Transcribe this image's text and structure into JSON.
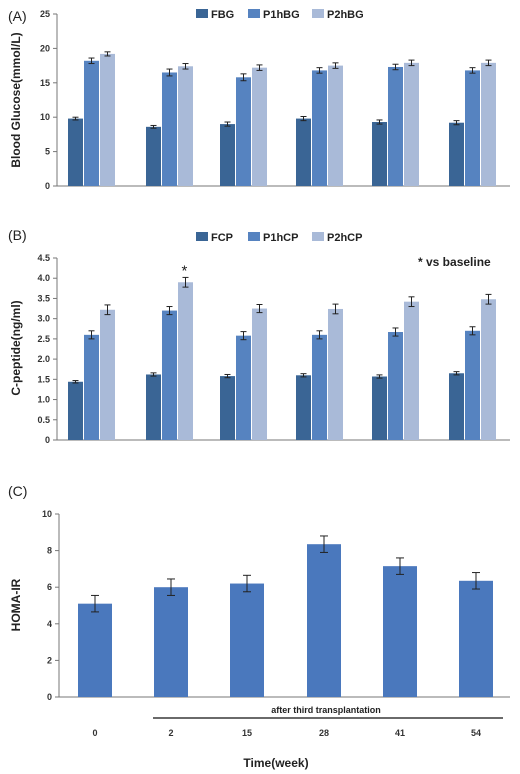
{
  "colors": {
    "dark": "#3a6595",
    "mid": "#5683c0",
    "light": "#a9bad8",
    "single": "#4a78bd",
    "err": "#222222"
  },
  "chart_data": [
    {
      "panel": "(A)",
      "type": "bar",
      "ylabel": "Blood Glucose(mmol/L)",
      "ylim": [
        0,
        25
      ],
      "yticks": [
        "0",
        "5",
        "10",
        "15",
        "20",
        "25"
      ],
      "series": [
        {
          "name": "FBG",
          "values": [
            9.8,
            8.6,
            9.0,
            9.8,
            9.3,
            9.2
          ],
          "errors": [
            0.2,
            0.2,
            0.3,
            0.3,
            0.3,
            0.3
          ]
        },
        {
          "name": "P1hBG",
          "values": [
            18.2,
            16.5,
            15.8,
            16.8,
            17.3,
            16.8
          ],
          "errors": [
            0.4,
            0.5,
            0.5,
            0.4,
            0.4,
            0.4
          ]
        },
        {
          "name": "P2hBG",
          "values": [
            19.2,
            17.4,
            17.2,
            17.5,
            17.9,
            17.9
          ],
          "errors": [
            0.3,
            0.4,
            0.4,
            0.4,
            0.4,
            0.4
          ]
        }
      ]
    },
    {
      "panel": "(B)",
      "type": "bar",
      "ylabel": "C-peptide(ng/ml)",
      "ylim": [
        0,
        4.5
      ],
      "yticks": [
        "0",
        "0.5",
        "1.0",
        "1.5",
        "2.0",
        "2.5",
        "3.0",
        "3.5",
        "4.0",
        "4.5"
      ],
      "annotation": "* vs baseline",
      "star": "*",
      "series": [
        {
          "name": "FCP",
          "values": [
            1.44,
            1.62,
            1.58,
            1.6,
            1.57,
            1.65
          ],
          "errors": [
            0.03,
            0.04,
            0.04,
            0.04,
            0.04,
            0.04
          ]
        },
        {
          "name": "P1hCP",
          "values": [
            2.6,
            3.2,
            2.58,
            2.6,
            2.67,
            2.7
          ],
          "errors": [
            0.1,
            0.1,
            0.1,
            0.1,
            0.1,
            0.1
          ]
        },
        {
          "name": "P2hCP",
          "values": [
            3.22,
            3.9,
            3.25,
            3.24,
            3.42,
            3.48
          ],
          "errors": [
            0.12,
            0.12,
            0.1,
            0.12,
            0.12,
            0.12
          ]
        }
      ]
    },
    {
      "panel": "(C)",
      "type": "bar",
      "ylabel": "HOMA-IR",
      "ylim": [
        0,
        10
      ],
      "yticks": [
        "0",
        "2",
        "4",
        "6",
        "8",
        "10"
      ],
      "categories": [
        "0",
        "2",
        "15",
        "28",
        "41",
        "54"
      ],
      "bracket_label": "after third transplantation",
      "xlabel": "Time(week)",
      "series": [
        {
          "values": [
            5.1,
            6.0,
            6.2,
            8.35,
            7.15,
            6.35
          ],
          "errors": [
            0.45,
            0.45,
            0.45,
            0.45,
            0.45,
            0.45
          ]
        }
      ]
    }
  ]
}
